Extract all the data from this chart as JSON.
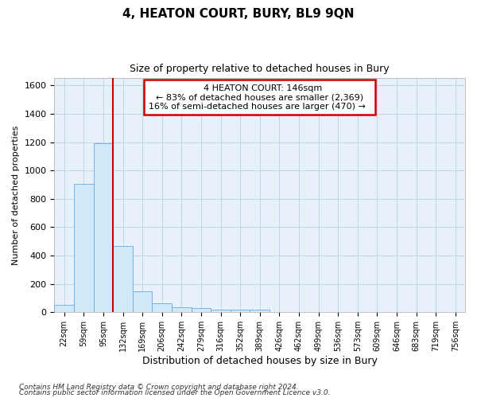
{
  "title": "4, HEATON COURT, BURY, BL9 9QN",
  "subtitle": "Size of property relative to detached houses in Bury",
  "xlabel": "Distribution of detached houses by size in Bury",
  "ylabel": "Number of detached properties",
  "footnote1": "Contains HM Land Registry data © Crown copyright and database right 2024.",
  "footnote2": "Contains public sector information licensed under the Open Government Licence v3.0.",
  "annotation_line1": "4 HEATON COURT: 146sqm",
  "annotation_line2": "← 83% of detached houses are smaller (2,369)",
  "annotation_line3": "16% of semi-detached houses are larger (470) →",
  "bar_color": "#d0e8f8",
  "bar_edge_color": "#6aabe0",
  "vline_color": "#cc0000",
  "annotation_box_edgecolor": "#cc0000",
  "annotation_box_facecolor": "#ffffff",
  "grid_color": "#c0d4e8",
  "background_color": "#e8f0fa",
  "bin_labels": [
    "22sqm",
    "59sqm",
    "95sqm",
    "132sqm",
    "169sqm",
    "206sqm",
    "242sqm",
    "279sqm",
    "316sqm",
    "352sqm",
    "389sqm",
    "426sqm",
    "462sqm",
    "499sqm",
    "536sqm",
    "573sqm",
    "609sqm",
    "646sqm",
    "683sqm",
    "719sqm",
    "756sqm"
  ],
  "bar_heights": [
    55,
    905,
    1190,
    470,
    150,
    62,
    38,
    30,
    20,
    20,
    20,
    0,
    0,
    0,
    0,
    0,
    0,
    0,
    0,
    0,
    0
  ],
  "vline_x_index": 3,
  "ylim": [
    0,
    1650
  ],
  "yticks": [
    0,
    200,
    400,
    600,
    800,
    1000,
    1200,
    1400,
    1600
  ],
  "figsize": [
    6.0,
    5.0
  ],
  "dpi": 100
}
